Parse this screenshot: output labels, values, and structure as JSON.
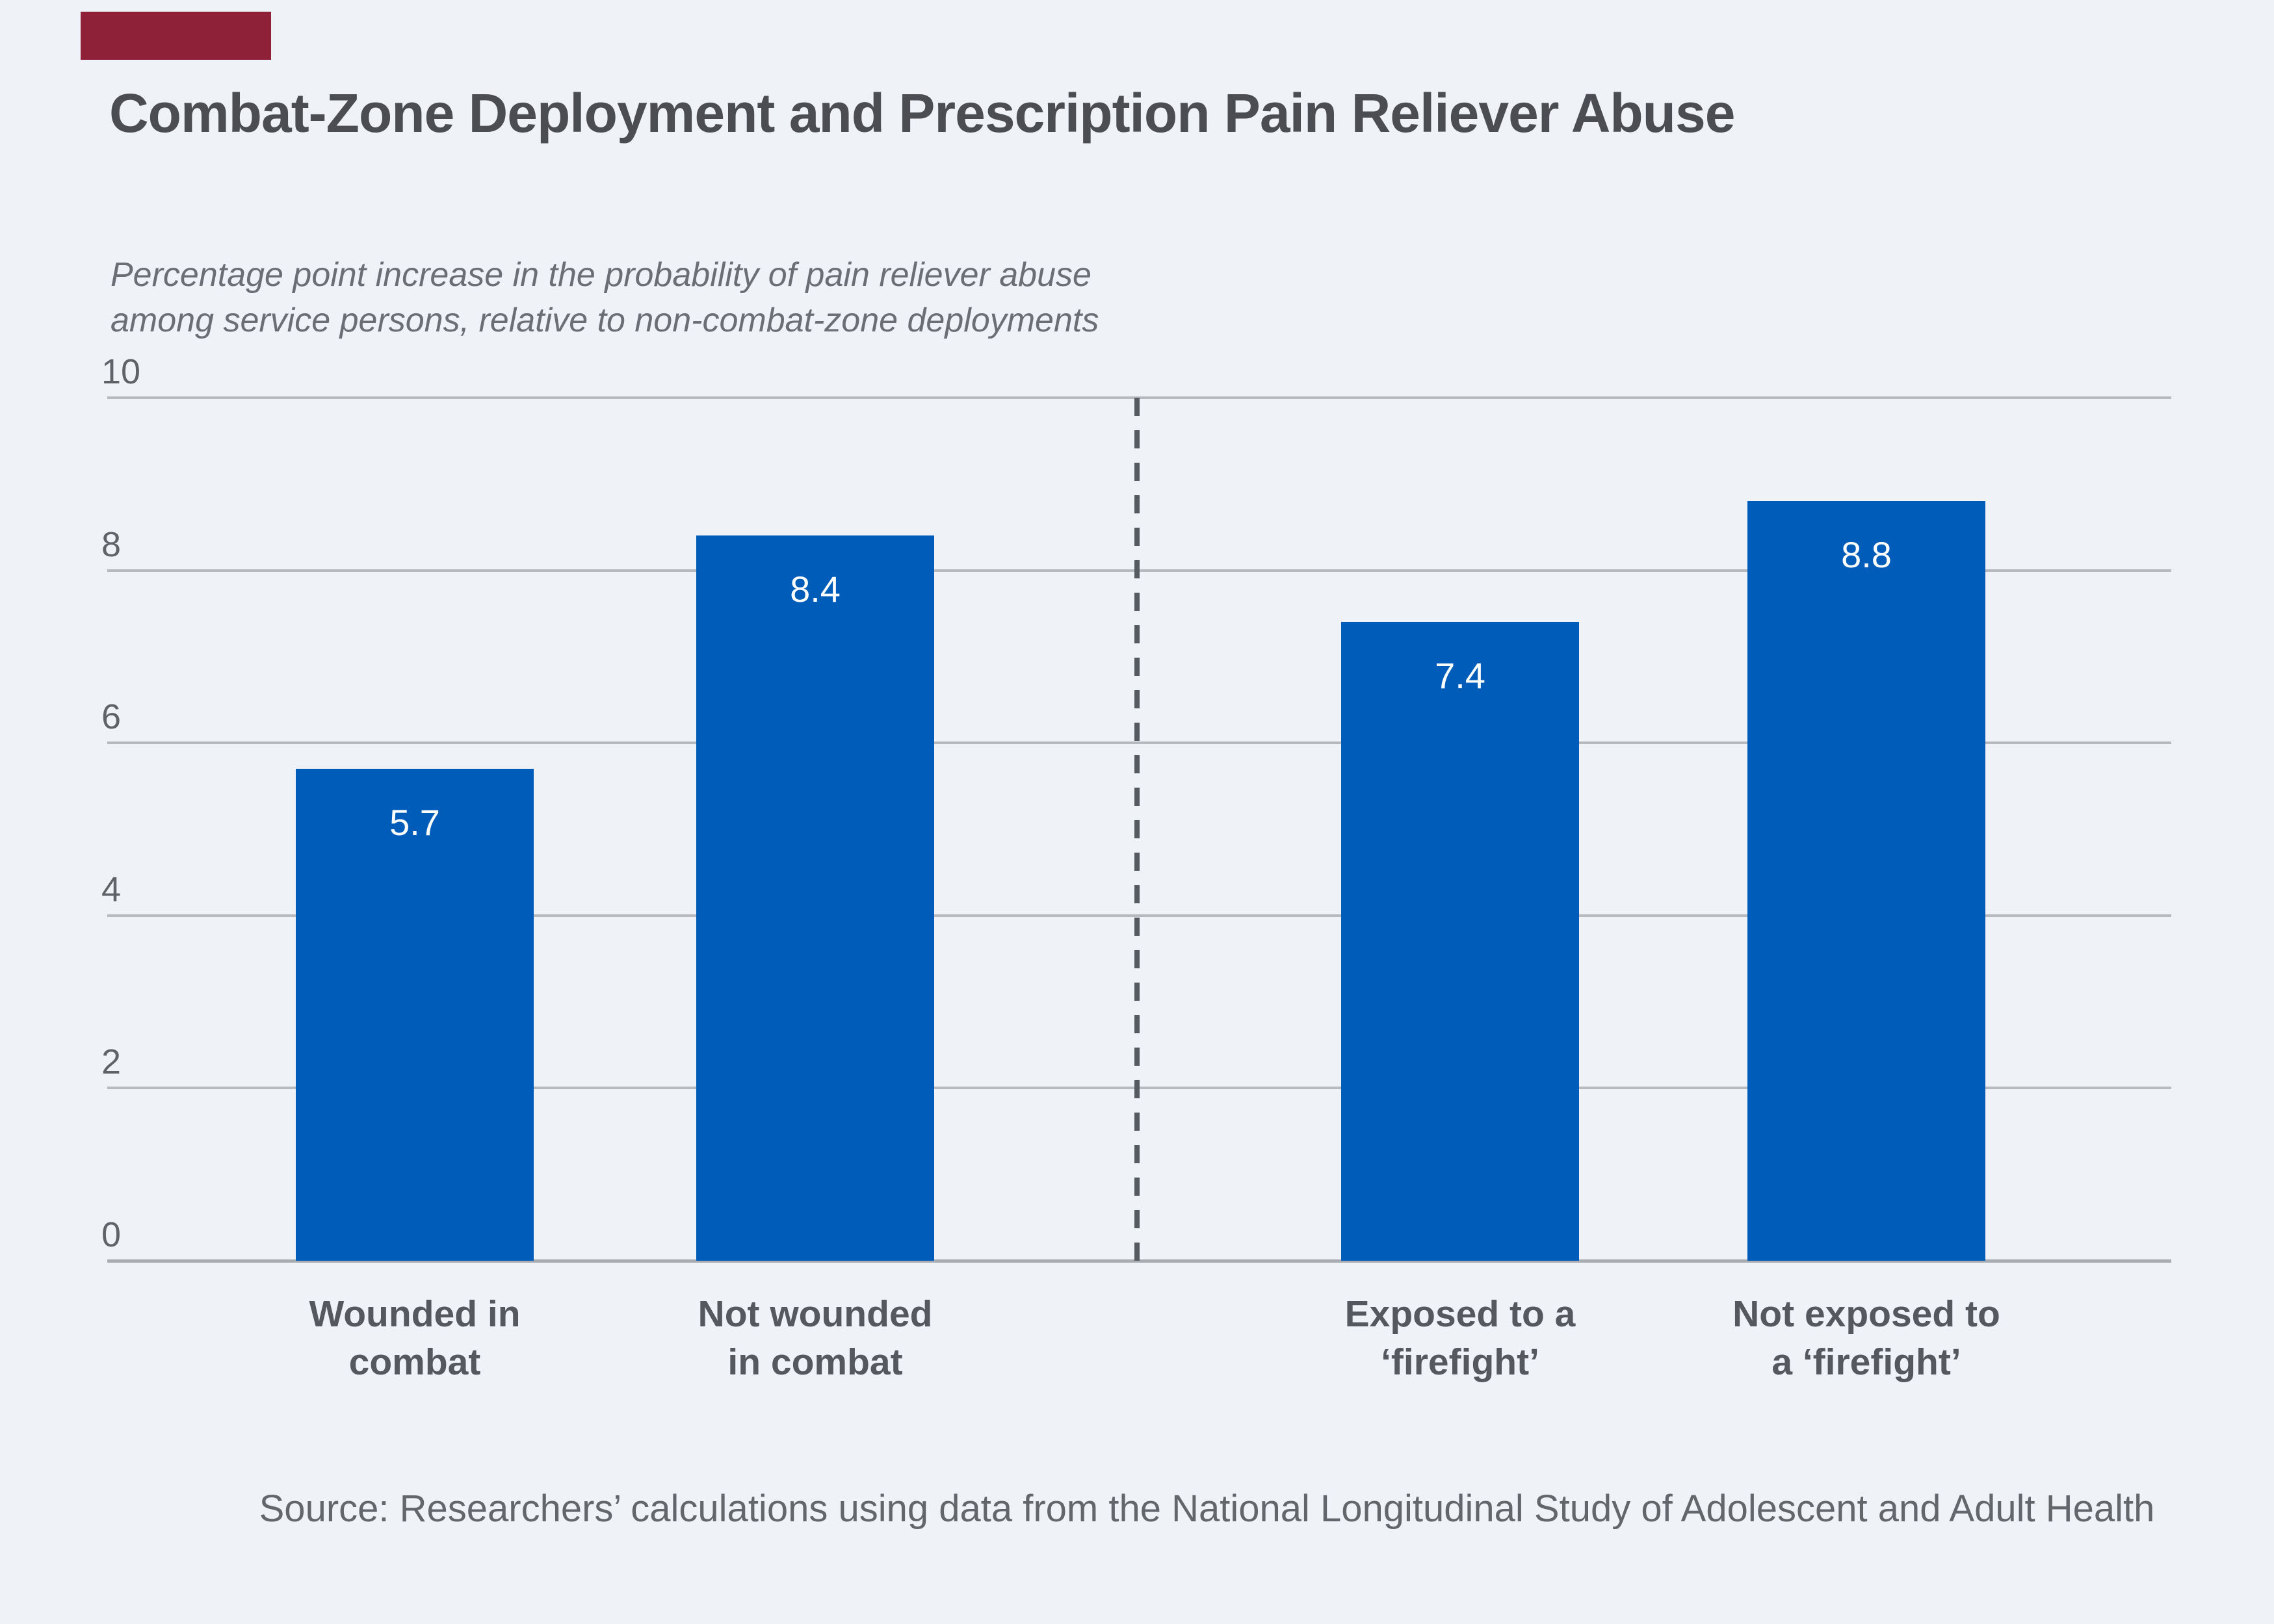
{
  "page": {
    "background_color": "#eff3f8",
    "brand_mark_color": "#8e2138"
  },
  "chart": {
    "title": "Combat-Zone Deployment and Prescription Pain Reliever Abuse",
    "subtitle_line1": "Percentage point increase in the probability of pain reliever abuse",
    "subtitle_line2": "among service persons, relative to non-combat-zone deployments",
    "source": "Source: Researchers’ calculations using data from the National Longitudinal Study of Adolescent and Adult Health"
  },
  "chart_data": {
    "type": "bar",
    "title": "Combat-Zone Deployment and Prescription Pain Reliever Abuse",
    "categories": [
      "Wounded in\ncombat",
      "Not wounded\nin combat",
      "Exposed to a\n‘firefight’",
      "Not exposed to\na ‘firefight’"
    ],
    "values": [
      5.7,
      8.4,
      7.4,
      8.8
    ],
    "value_labels": [
      "5.7",
      "8.4",
      "7.4",
      "8.8"
    ],
    "xlabel": "",
    "ylabel": "Percentage point increase in the probability of pain reliever abuse among service persons, relative to non-combat-zone deployments",
    "y_ticks": [
      0,
      2,
      4,
      6,
      8,
      10
    ],
    "ylim": [
      0,
      10
    ],
    "grid": true,
    "legend": "none",
    "bar_color": "#005cb9",
    "divider_note": "dashed vertical line separates wounded/not-wounded group from firefight-exposure group"
  }
}
